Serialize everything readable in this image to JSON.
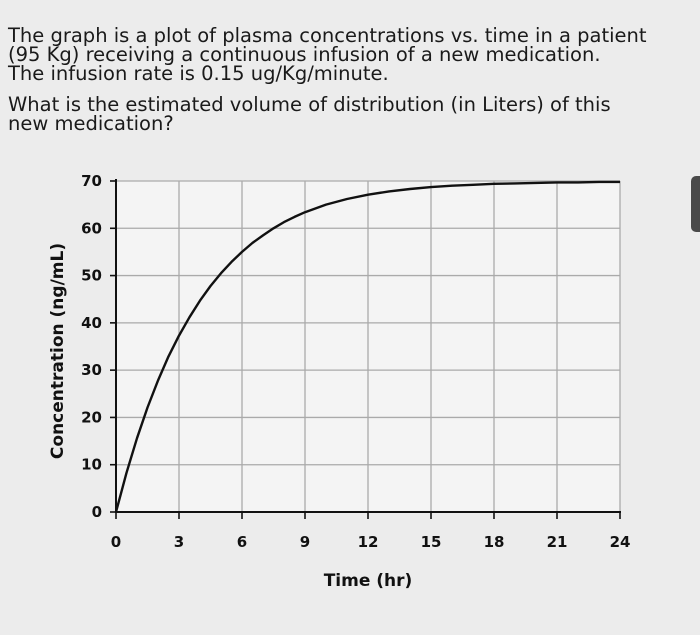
{
  "question": {
    "lines_para1": [
      "The graph is a plot of plasma concentrations vs. time in a patient",
      "(95 Kg) receiving a continuous infusion of a new medication.",
      "The infusion rate is 0.15 ug/Kg/minute."
    ],
    "lines_para2": [
      "What is the estimated volume of distribution (in Liters) of this",
      "new medication?"
    ]
  },
  "chart_data": {
    "type": "line",
    "xlabel": "Time (hr)",
    "ylabel": "Concentration (ng/mL)",
    "xlim": [
      0,
      24
    ],
    "ylim": [
      0,
      70
    ],
    "xticks": [
      0,
      3,
      6,
      9,
      12,
      15,
      18,
      21,
      24
    ],
    "yticks": [
      0,
      10,
      20,
      30,
      40,
      50,
      60,
      70
    ],
    "grid": true,
    "series": [
      {
        "color": "#111111",
        "x": [
          0,
          0.5,
          1,
          1.5,
          2,
          2.5,
          3,
          3.5,
          4,
          4.5,
          5,
          5.5,
          6,
          6.5,
          7,
          7.5,
          8,
          8.5,
          9,
          10,
          11,
          12,
          13,
          14,
          15,
          16,
          17,
          18,
          19,
          20,
          21,
          22,
          23,
          24
        ],
        "y": [
          0,
          8.3,
          15.6,
          22.1,
          27.8,
          32.9,
          37.3,
          41.2,
          44.7,
          47.8,
          50.5,
          52.9,
          55.0,
          56.9,
          58.5,
          60.0,
          61.3,
          62.4,
          63.4,
          65.0,
          66.2,
          67.1,
          67.8,
          68.3,
          68.7,
          69.0,
          69.2,
          69.4,
          69.5,
          69.6,
          69.7,
          69.7,
          69.8,
          69.8
        ]
      }
    ]
  }
}
